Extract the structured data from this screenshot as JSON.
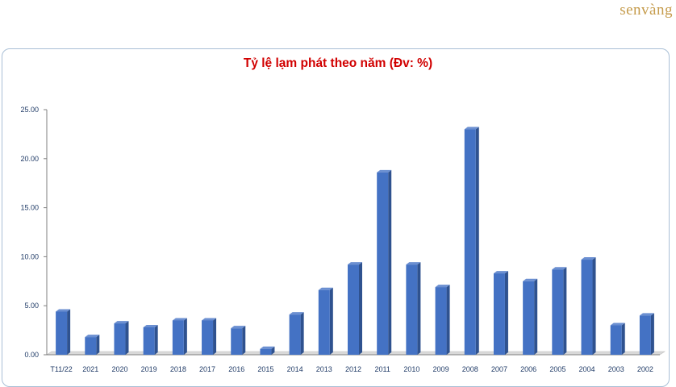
{
  "brand": {
    "logo_text": "senvàng",
    "accent": "#c59b4b"
  },
  "chart_data": {
    "type": "bar",
    "title": "Tỷ lệ lạm phát theo năm (Đv: %)",
    "xlabel": "",
    "ylabel": "",
    "ylim": [
      0,
      25
    ],
    "yticks": [
      "0.00",
      "5.00",
      "10.00",
      "15.00",
      "20.00",
      "25.00"
    ],
    "categories": [
      "T11/22",
      "2021",
      "2020",
      "2019",
      "2018",
      "2017",
      "2016",
      "2015",
      "2014",
      "2013",
      "2012",
      "2011",
      "2010",
      "2009",
      "2008",
      "2007",
      "2006",
      "2005",
      "2004",
      "2003",
      "2002"
    ],
    "values": [
      4.4,
      1.8,
      3.2,
      2.8,
      3.5,
      3.5,
      2.7,
      0.6,
      4.1,
      6.6,
      9.2,
      18.6,
      9.2,
      6.9,
      23.0,
      8.3,
      7.5,
      8.7,
      9.7,
      3.0,
      4.0
    ],
    "bar_color": "#4472c4",
    "grid": false
  }
}
